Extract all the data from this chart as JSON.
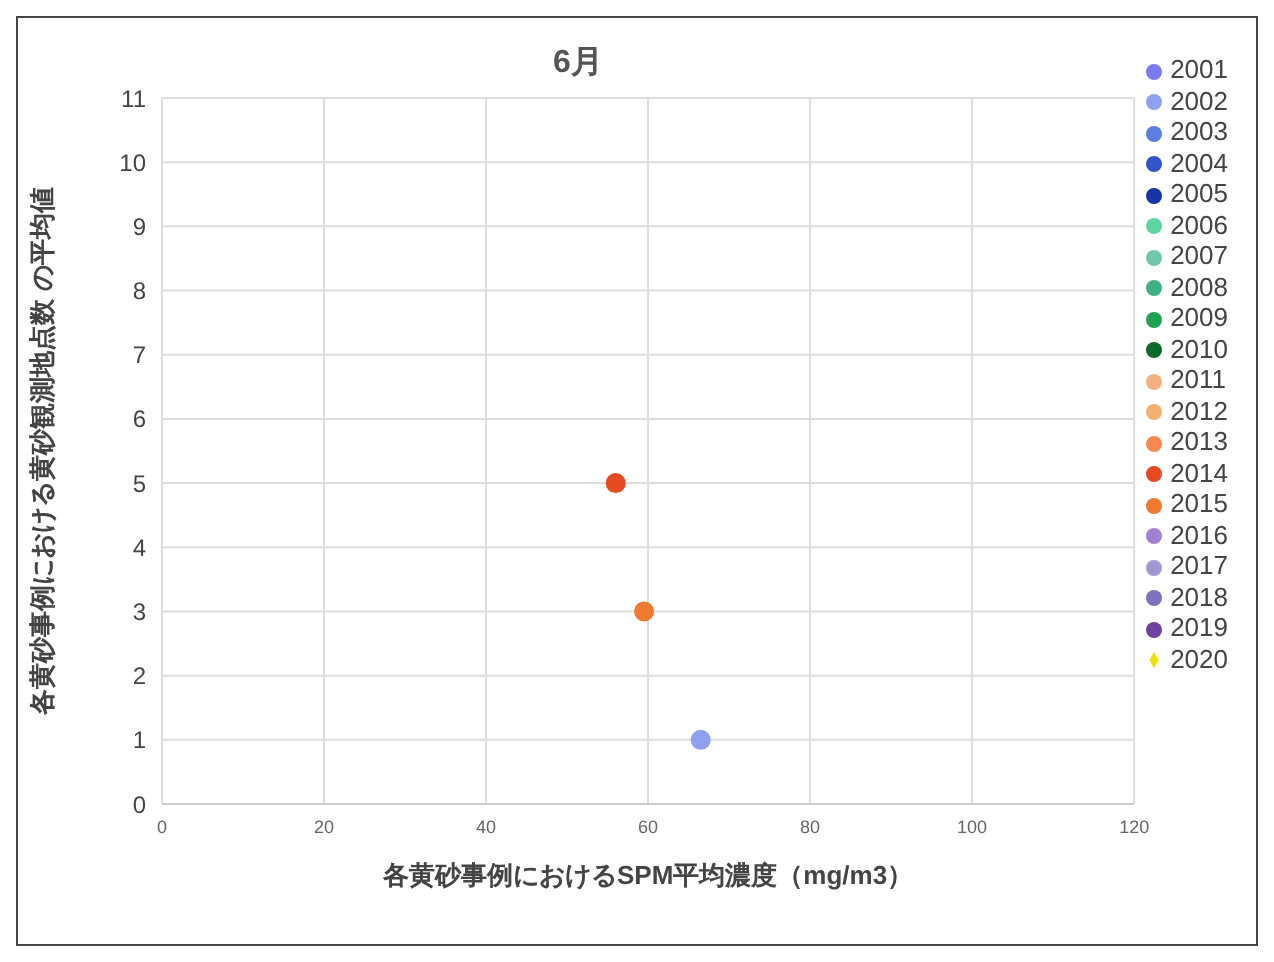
{
  "chart_data": {
    "type": "scatter",
    "title": "6月",
    "xlabel": "各黄砂事例におけるSPM平均濃度（mg/m3）",
    "ylabel": "各黄砂事例における黄砂観測地点数 の平均値",
    "xlim": [
      0,
      120
    ],
    "xticks": [
      0,
      20,
      40,
      60,
      80,
      100,
      120
    ],
    "ylim": [
      0,
      11
    ],
    "yticks": [
      0,
      1,
      2,
      3,
      4,
      5,
      6,
      7,
      8,
      9,
      10,
      11
    ],
    "grid": true,
    "legend": "right",
    "marker": "circle",
    "series": [
      {
        "name": "2001",
        "color": "#7b7bf0"
      },
      {
        "name": "2002",
        "color": "#8ea0f0",
        "x": [
          66.5
        ],
        "values": [
          1
        ]
      },
      {
        "name": "2003",
        "color": "#5b7fe0"
      },
      {
        "name": "2004",
        "color": "#3355cc"
      },
      {
        "name": "2005",
        "color": "#1a33a8"
      },
      {
        "name": "2006",
        "color": "#5cd6a0"
      },
      {
        "name": "2007",
        "color": "#70c8a8"
      },
      {
        "name": "2008",
        "color": "#40b080"
      },
      {
        "name": "2009",
        "color": "#20a050"
      },
      {
        "name": "2010",
        "color": "#0a6a2a"
      },
      {
        "name": "2011",
        "color": "#f5b080"
      },
      {
        "name": "2012",
        "color": "#f5b070"
      },
      {
        "name": "2013",
        "color": "#f58a50"
      },
      {
        "name": "2014",
        "color": "#e54a20",
        "x": [
          56
        ],
        "values": [
          5
        ]
      },
      {
        "name": "2015",
        "color": "#f07a30",
        "x": [
          59.5
        ],
        "values": [
          3
        ]
      },
      {
        "name": "2016",
        "color": "#a080d0"
      },
      {
        "name": "2017",
        "color": "#a098d0"
      },
      {
        "name": "2018",
        "color": "#8070c0"
      },
      {
        "name": "2019",
        "color": "#7040a0"
      },
      {
        "name": "2020",
        "color": "#f0e000",
        "marker": "diamond"
      }
    ]
  }
}
